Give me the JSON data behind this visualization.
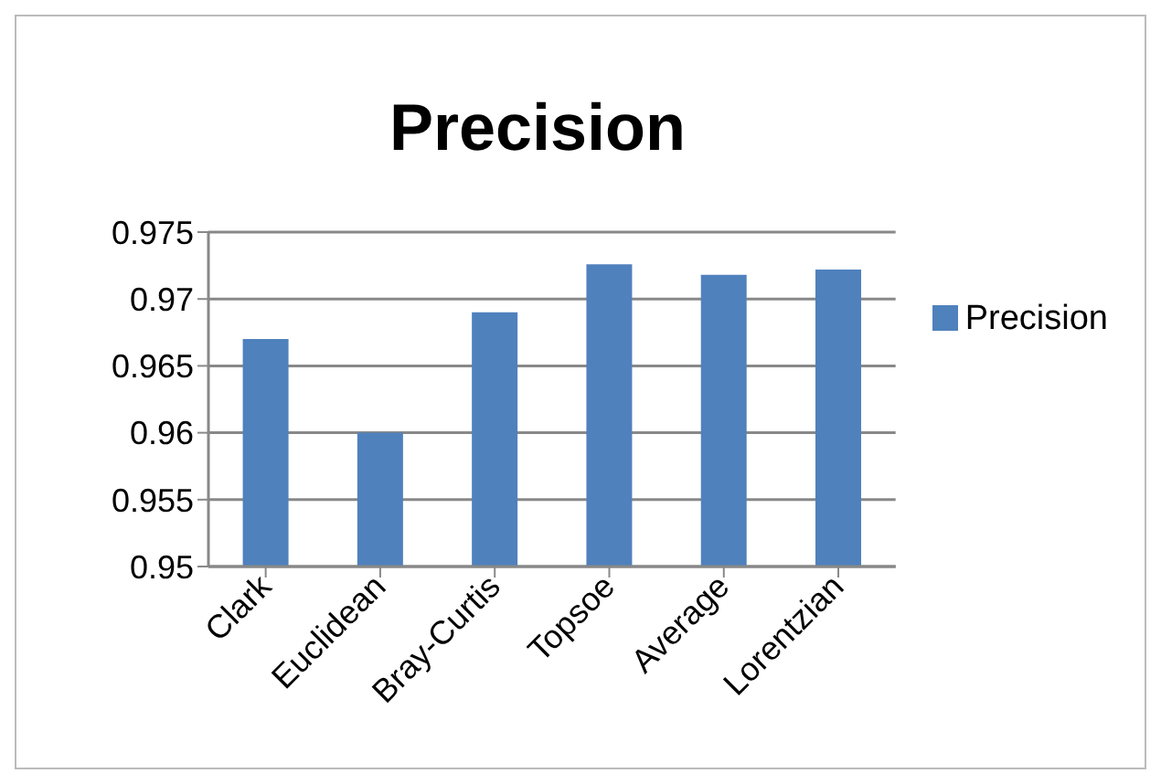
{
  "chart_data": {
    "type": "bar",
    "title": "Precision",
    "categories": [
      "Clark",
      "Euclidean",
      "Bray-Curtis",
      "Topsoe",
      "Average",
      "Lorentzian"
    ],
    "series": [
      {
        "name": "Precision",
        "color": "#4f81bd",
        "values": [
          0.967,
          0.96,
          0.969,
          0.9726,
          0.9718,
          0.9722
        ]
      }
    ],
    "ylim": [
      0.95,
      0.975
    ],
    "yticks": [
      0.95,
      0.955,
      0.96,
      0.965,
      0.97,
      0.975
    ],
    "grid": "y",
    "legend": "right"
  }
}
